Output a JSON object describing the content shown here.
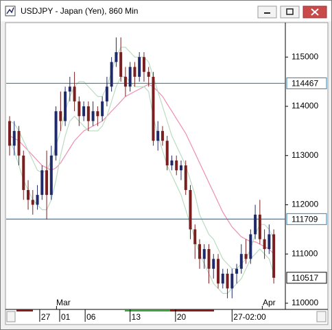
{
  "chart_data": {
    "type": "candlestick",
    "title": "USDJPY - Japan (Yen), 860 Min",
    "open": [
      113700,
      113200,
      113500,
      113000,
      112300,
      112100,
      112000,
      112200,
      112700,
      112200,
      113000,
      113900,
      113700,
      114300,
      114400,
      114100,
      113800,
      114000,
      113700,
      113900,
      113800,
      114100,
      114400,
      114900,
      115100,
      114600,
      114400,
      114800,
      114600,
      115000,
      114700,
      114600,
      113300,
      113500,
      113300,
      112800,
      112900,
      112700,
      112800,
      112300,
      111500,
      111200,
      110900,
      111100,
      110700,
      110900,
      110400,
      110600,
      110300,
      110600,
      110700,
      111000,
      110900,
      111400,
      111800,
      111300,
      111100,
      111400
    ],
    "high": [
      113800,
      113700,
      113600,
      113100,
      112500,
      112300,
      112400,
      112800,
      113100,
      113200,
      114000,
      114300,
      114400,
      114600,
      114700,
      114200,
      114100,
      114100,
      114100,
      114000,
      114200,
      114600,
      115000,
      115400,
      115400,
      114800,
      114900,
      114900,
      115100,
      115100,
      114800,
      114700,
      113700,
      113600,
      113400,
      113000,
      113000,
      112900,
      112900,
      112400,
      111600,
      111300,
      111200,
      111200,
      111000,
      111000,
      110700,
      110700,
      110700,
      110800,
      111200,
      111300,
      111500,
      112000,
      112100,
      111500,
      111600,
      111500
    ],
    "low": [
      113000,
      113000,
      112800,
      112100,
      111900,
      111800,
      111900,
      112100,
      111700,
      112100,
      112900,
      113500,
      113600,
      114100,
      113900,
      113600,
      113700,
      113500,
      113600,
      113600,
      113700,
      114000,
      114300,
      114800,
      114500,
      114200,
      114300,
      114400,
      114500,
      114500,
      114400,
      113200,
      113100,
      113200,
      112700,
      112700,
      112600,
      112500,
      112200,
      111300,
      110900,
      110700,
      110700,
      110400,
      110500,
      110300,
      110300,
      110100,
      110100,
      110400,
      110600,
      110800,
      110800,
      111300,
      111200,
      110900,
      111000,
      110400
    ],
    "close": [
      113200,
      113500,
      113000,
      112300,
      112100,
      112000,
      112200,
      112700,
      112200,
      113000,
      113900,
      113700,
      114300,
      114400,
      114100,
      113800,
      114000,
      113700,
      113900,
      113800,
      114100,
      114400,
      114900,
      115100,
      114600,
      114400,
      114800,
      114600,
      115000,
      114700,
      114600,
      113300,
      113500,
      113300,
      112800,
      112900,
      112700,
      112800,
      112300,
      111500,
      111200,
      110900,
      111100,
      110700,
      110900,
      110400,
      110600,
      110300,
      110600,
      110700,
      111000,
      110900,
      111400,
      111800,
      111300,
      111100,
      111400,
      110517
    ],
    "up_color": "#1f2a6b",
    "down_color": "#7a1f1f",
    "overlays": [
      {
        "color": "#f08cb4",
        "values": [
          113400,
          113350,
          113300,
          113200,
          113100,
          113000,
          112900,
          112800,
          112750,
          112700,
          112750,
          112850,
          113000,
          113150,
          113300,
          113400,
          113500,
          113550,
          113600,
          113650,
          113700,
          113800,
          113900,
          114000,
          114100,
          114200,
          114250,
          114300,
          114350,
          114400,
          114450,
          114400,
          114300,
          114200,
          114050,
          113900,
          113750,
          113600,
          113450,
          113250,
          113050,
          112850,
          112650,
          112450,
          112250,
          112050,
          111850,
          111700,
          111550,
          111450,
          111350,
          111300,
          111250,
          111250,
          111200,
          111150,
          111100,
          111000
        ]
      },
      {
        "color": "#b9dcc0",
        "values": [
          113700,
          113650,
          113500,
          113300,
          113100,
          112900,
          112700,
          112650,
          112700,
          112900,
          113200,
          113500,
          113900,
          114200,
          114400,
          114500,
          114500,
          114400,
          114300,
          114200,
          114200,
          114400,
          114700,
          115000,
          115200,
          115200,
          115100,
          115000,
          115000,
          115000,
          114900,
          114600,
          114300,
          114000,
          113700,
          113400,
          113200,
          113000,
          112800,
          112500,
          112200,
          111800,
          111600,
          111400,
          111300,
          111100,
          110900,
          110800,
          110700,
          110700,
          110800,
          110900,
          111100,
          111400,
          111600,
          111600,
          111500,
          111300
        ]
      },
      {
        "color": "#b9dcc0",
        "values": [
          113300,
          113100,
          112800,
          112500,
          112300,
          112100,
          112000,
          111900,
          111900,
          112100,
          112500,
          113000,
          113400,
          113700,
          113800,
          113700,
          113600,
          113500,
          113500,
          113500,
          113600,
          113800,
          114100,
          114400,
          114600,
          114600,
          114500,
          114400,
          114400,
          114400,
          114300,
          113800,
          113400,
          113100,
          112800,
          112600,
          112400,
          112200,
          111900,
          111600,
          111300,
          111000,
          110800,
          110600,
          110400,
          110300,
          110200,
          110200,
          110300,
          110400,
          110500,
          110700,
          110900,
          111000,
          111100,
          111000,
          110900,
          110600
        ]
      }
    ],
    "hlines": [
      114467,
      111709
    ],
    "hline_color": "#1e88c8",
    "last_price": 110517,
    "ylim": [
      109874,
      115686
    ],
    "yticks": [
      110000,
      111000,
      112000,
      113000,
      114000,
      115000
    ],
    "xlim": [
      -0.74,
      59.5
    ],
    "xticks": [
      {
        "value": 6.5,
        "label": "27"
      },
      {
        "value": 10.8,
        "label": "01"
      },
      {
        "value": 16.3,
        "label": "06"
      },
      {
        "value": 26,
        "label": "13"
      },
      {
        "value": 35.8,
        "label": "20"
      },
      {
        "value": 48,
        "label": "27-02:00"
      }
    ],
    "month_ticks": [
      {
        "value": 11.6,
        "label": "Mar"
      },
      {
        "value": 56,
        "label": "Apr"
      }
    ]
  }
}
